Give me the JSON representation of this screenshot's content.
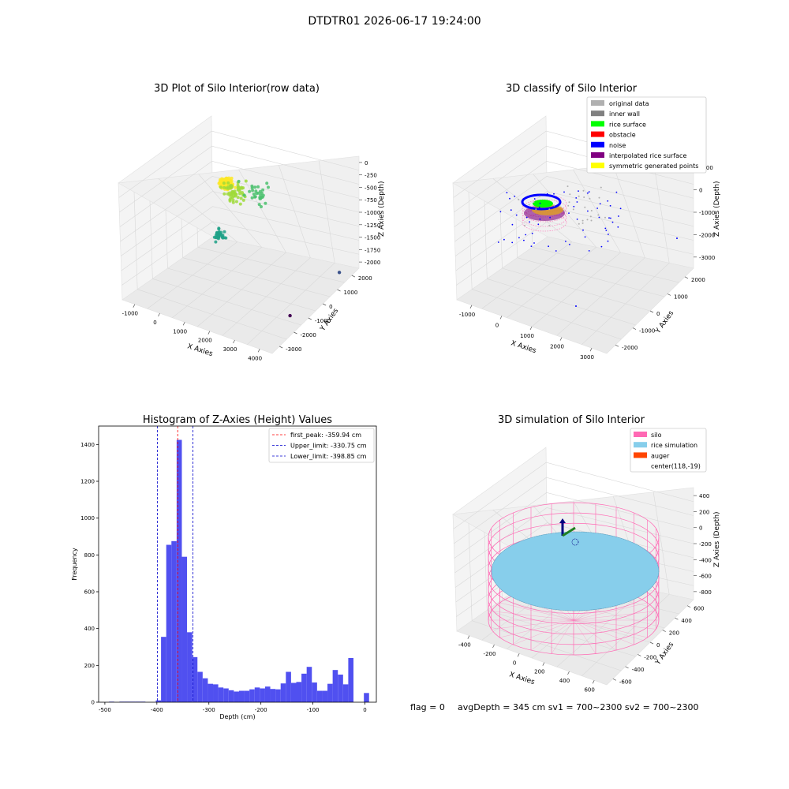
{
  "suptitle": "DTDTR01 2026-06-17 19:24:00",
  "footer": {
    "flag": "flag = 0",
    "stats": "avgDepth = 345 cm  sv1 = 700~2300  sv2 = 700~2300"
  },
  "colors": {
    "hist_bar": "#5050f0",
    "peak_line": "#ff0000",
    "limit_line": "#0000cc",
    "silo": "#ff69b4",
    "rice_sim": "#87ceeb",
    "auger": "#ff4500",
    "original": "#b0b0b0",
    "inner_wall": "#808080",
    "rice_surface": "#00ff00",
    "obstacle": "#ff0000",
    "noise": "#0000ff",
    "interp_surface": "#800080",
    "symmetric": "#ffff00"
  },
  "chart_data": [
    {
      "id": "raw",
      "type": "scatter",
      "title": "3D Plot of Silo Interior(row data)",
      "xlabel": "X Axies",
      "ylabel": "Y Axies",
      "zlabel": "Z Axies (Depth)",
      "x_ticks": [
        "-1000",
        "0",
        "1000",
        "2000",
        "3000",
        "4000"
      ],
      "y_ticks": [
        "-3000",
        "-2000",
        "-1000",
        "0",
        "1000",
        "2000"
      ],
      "z_ticks": [
        "0",
        "-250",
        "-500",
        "-750",
        "-1000",
        "-1250",
        "-1500",
        "-1750",
        "-2000"
      ],
      "xlim": [
        -1300,
        4100
      ],
      "ylim": [
        -3200,
        2400
      ],
      "zlim": [
        -2300,
        100
      ],
      "colormap": "viridis by depth",
      "clusters": [
        {
          "x": 400,
          "y": 300,
          "z": -400,
          "spread": 250,
          "n": 220,
          "color": "#fde725"
        },
        {
          "x": 700,
          "y": 300,
          "z": -500,
          "spread": 500,
          "n": 60,
          "color": "#9fda3a"
        },
        {
          "x": 1200,
          "y": 800,
          "z": -550,
          "spread": 600,
          "n": 30,
          "color": "#4ac16d"
        },
        {
          "x": 300,
          "y": 0,
          "z": -1400,
          "spread": 250,
          "n": 35,
          "color": "#1fa187"
        }
      ],
      "outliers": [
        {
          "x": 3400,
          "y": -900,
          "z": -2200,
          "color": "#440154"
        },
        {
          "x": 3600,
          "y": 1800,
          "z": -1900,
          "color": "#3b528b"
        }
      ]
    },
    {
      "id": "classify",
      "type": "scatter",
      "title": "3D classify of Silo Interior",
      "xlabel": "X Axies",
      "ylabel": "Y Axies",
      "zlabel": "Z Axies (Depth)",
      "x_ticks": [
        "-1000",
        "0",
        "1000",
        "2000",
        "3000"
      ],
      "y_ticks": [
        "-2000",
        "-1000",
        "0",
        "1000",
        "2000"
      ],
      "z_ticks": [
        "1000",
        "0",
        "-1000",
        "-2000",
        "-3000"
      ],
      "xlim": [
        -1300,
        4000
      ],
      "ylim": [
        -2500,
        2400
      ],
      "zlim": [
        -3500,
        1200
      ],
      "legend": [
        "original data",
        "inner wall",
        "rice surface",
        "obstacle",
        "noise",
        "interpolated rice surface",
        "symmetric generated points"
      ],
      "legend_position": "upper right"
    },
    {
      "id": "hist",
      "type": "bar",
      "title": "Histogram of Z-Axies (Height) Values",
      "xlabel": "Depth (cm)",
      "ylabel": "Frequency",
      "xlim": [
        -512,
        22
      ],
      "ylim": [
        0,
        1500
      ],
      "x_ticks": [
        -500,
        -400,
        -300,
        -200,
        -100,
        0
      ],
      "y_ticks": [
        0,
        200,
        400,
        600,
        800,
        1000,
        1200,
        1400
      ],
      "bin_width": 10,
      "bin_starts": [
        -492,
        -482,
        -472,
        -462,
        -452,
        -442,
        -432,
        -422,
        -412,
        -402,
        -392,
        -382,
        -372,
        -362,
        -352,
        -342,
        -332,
        -322,
        -312,
        -302,
        -292,
        -282,
        -272,
        -262,
        -252,
        -242,
        -232,
        -222,
        -212,
        -202,
        -192,
        -182,
        -172,
        -162,
        -152,
        -142,
        -132,
        -122,
        -112,
        -102,
        -92,
        -82,
        -72,
        -62,
        -52,
        -42,
        -32,
        -22,
        -12,
        -2
      ],
      "values": [
        3,
        0,
        3,
        3,
        3,
        3,
        3,
        0,
        0,
        10,
        355,
        855,
        875,
        1425,
        790,
        380,
        245,
        165,
        130,
        100,
        97,
        80,
        75,
        65,
        58,
        62,
        62,
        70,
        80,
        75,
        85,
        72,
        70,
        102,
        165,
        105,
        110,
        155,
        192,
        107,
        62,
        62,
        100,
        175,
        150,
        97,
        240,
        0,
        0,
        50
      ],
      "vlines": [
        {
          "x": -359.94,
          "style": "peak",
          "label": "first_peak: -359.94 cm"
        },
        {
          "x": -330.75,
          "style": "limit",
          "label": "Upper_limit: -330.75 cm"
        },
        {
          "x": -398.85,
          "style": "limit",
          "label": "Lower_limit: -398.85 cm"
        }
      ],
      "legend_position": "upper right"
    },
    {
      "id": "sim",
      "type": "scatter",
      "title": "3D simulation of Silo Interior",
      "xlabel": "X Axies",
      "ylabel": "Y Axies",
      "zlabel": "Z Axies (Depth)",
      "x_ticks": [
        "-400",
        "-200",
        "0",
        "200",
        "400",
        "600"
      ],
      "y_ticks": [
        "-600",
        "-400",
        "-200",
        "0",
        "200",
        "400",
        "600"
      ],
      "z_ticks": [
        "400",
        "200",
        "0",
        "-200",
        "-400",
        "-600",
        "-800"
      ],
      "xlim": [
        -550,
        800
      ],
      "ylim": [
        -700,
        700
      ],
      "zlim": [
        -1000,
        500
      ],
      "legend": [
        "silo",
        "rice simulation",
        "auger",
        "center(118,-19)"
      ],
      "legend_position": "upper right",
      "silo": {
        "center_x": 118,
        "center_y": -19,
        "radius": 560,
        "z_top": 0,
        "z_bottom": -1000
      },
      "rice_surface_z": -345
    }
  ]
}
